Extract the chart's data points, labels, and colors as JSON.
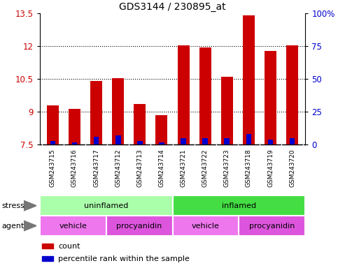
{
  "title": "GDS3144 / 230895_at",
  "samples": [
    "GSM243715",
    "GSM243716",
    "GSM243717",
    "GSM243712",
    "GSM243713",
    "GSM243714",
    "GSM243721",
    "GSM243722",
    "GSM243723",
    "GSM243718",
    "GSM243719",
    "GSM243720"
  ],
  "count_values": [
    9.3,
    9.15,
    10.4,
    10.55,
    9.35,
    8.85,
    12.05,
    11.95,
    10.6,
    13.4,
    11.8,
    12.05
  ],
  "percentile_values": [
    3,
    2,
    6,
    7,
    3,
    2,
    5,
    5,
    5,
    8,
    4,
    5
  ],
  "y_min": 7.5,
  "y_max": 13.5,
  "y_ticks": [
    7.5,
    9.0,
    10.5,
    12.0,
    13.5
  ],
  "right_y_ticks": [
    0,
    25,
    50,
    75,
    100
  ],
  "right_y_labels": [
    "0",
    "25",
    "50",
    "75",
    "100%"
  ],
  "dotted_lines": [
    9.0,
    10.5,
    12.0
  ],
  "bar_color_red": "#CC0000",
  "bar_color_blue": "#0000CC",
  "stress_groups": [
    {
      "label": "uninflamed",
      "start": 0,
      "end": 6,
      "color": "#AAFFAA"
    },
    {
      "label": "inflamed",
      "start": 6,
      "end": 12,
      "color": "#44DD44"
    }
  ],
  "agent_groups": [
    {
      "label": "vehicle",
      "start": 0,
      "end": 3,
      "color": "#EE77EE"
    },
    {
      "label": "procyanidin",
      "start": 3,
      "end": 6,
      "color": "#DD55DD"
    },
    {
      "label": "vehicle",
      "start": 6,
      "end": 9,
      "color": "#EE77EE"
    },
    {
      "label": "procyanidin",
      "start": 9,
      "end": 12,
      "color": "#DD55DD"
    }
  ],
  "legend_count_label": "count",
  "legend_percentile_label": "percentile rank within the sample",
  "stress_label": "stress",
  "agent_label": "agent",
  "title_fontsize": 10,
  "axis_label_color_red": "#CC0000",
  "axis_label_color_blue": "#0000CC",
  "gray_bg": "#CCCCCC",
  "bar_width": 0.55
}
